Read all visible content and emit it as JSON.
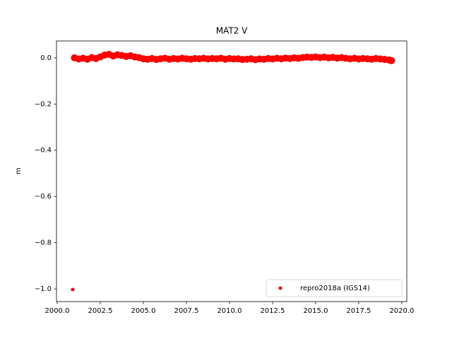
{
  "chart_data": {
    "type": "scatter",
    "title": "MAT2 V",
    "ylabel": "m",
    "x": [
      2000.9,
      2001.0,
      2001.25,
      2001.5,
      2001.75,
      2002.0,
      2002.25,
      2002.5,
      2002.75,
      2003.0,
      2003.25,
      2003.5,
      2003.75,
      2004.0,
      2004.25,
      2004.5,
      2004.75,
      2005.0,
      2005.25,
      2005.5,
      2005.75,
      2006.0,
      2006.25,
      2006.5,
      2006.75,
      2007.0,
      2007.25,
      2007.5,
      2007.75,
      2008.0,
      2008.25,
      2008.5,
      2008.75,
      2009.0,
      2009.25,
      2009.5,
      2009.75,
      2010.0,
      2010.25,
      2010.5,
      2010.75,
      2011.0,
      2011.25,
      2011.5,
      2011.75,
      2012.0,
      2012.25,
      2012.5,
      2012.75,
      2013.0,
      2013.25,
      2013.5,
      2013.75,
      2014.0,
      2014.25,
      2014.5,
      2014.75,
      2015.0,
      2015.25,
      2015.5,
      2015.75,
      2016.0,
      2016.25,
      2016.5,
      2016.75,
      2017.0,
      2017.25,
      2017.5,
      2017.75,
      2018.0,
      2018.25,
      2018.5,
      2018.75,
      2019.0,
      2019.25,
      2019.4
    ],
    "series": [
      {
        "name": "repro2018a (IGS14)",
        "color": "#ff0000",
        "values": [
          -1.003,
          0.0,
          -0.005,
          -0.002,
          -0.006,
          0.001,
          -0.003,
          0.004,
          0.012,
          0.015,
          0.008,
          0.013,
          0.01,
          0.006,
          0.009,
          0.004,
          0.001,
          -0.004,
          -0.006,
          -0.003,
          -0.007,
          -0.004,
          -0.002,
          -0.006,
          -0.003,
          -0.005,
          -0.002,
          -0.004,
          -0.006,
          -0.003,
          -0.004,
          -0.002,
          -0.005,
          -0.003,
          -0.004,
          -0.002,
          -0.006,
          -0.003,
          -0.005,
          -0.004,
          -0.007,
          -0.006,
          -0.004,
          -0.008,
          -0.005,
          -0.006,
          -0.003,
          -0.005,
          -0.002,
          -0.004,
          -0.001,
          -0.003,
          0.0,
          -0.002,
          0.001,
          0.003,
          0.002,
          0.004,
          0.001,
          0.003,
          0.0,
          0.002,
          -0.001,
          0.001,
          -0.002,
          -0.004,
          -0.002,
          -0.005,
          -0.003,
          -0.004,
          -0.006,
          -0.003,
          -0.005,
          -0.007,
          -0.009,
          -0.012
        ]
      }
    ],
    "xlim": [
      1999.96,
      2020.29
    ],
    "ylim": [
      -1.055,
      0.073
    ],
    "xticks": [
      {
        "value": 2000.0,
        "label": "2000.0"
      },
      {
        "value": 2002.5,
        "label": "2002.5"
      },
      {
        "value": 2005.0,
        "label": "2005.0"
      },
      {
        "value": 2007.5,
        "label": "2007.5"
      },
      {
        "value": 2010.0,
        "label": "2010.0"
      },
      {
        "value": 2012.5,
        "label": "2012.5"
      },
      {
        "value": 2015.0,
        "label": "2015.0"
      },
      {
        "value": 2017.5,
        "label": "2017.5"
      },
      {
        "value": 2020.0,
        "label": "2020.0"
      }
    ],
    "yticks": [
      {
        "value": 0.0,
        "label": "0.0"
      },
      {
        "value": -0.2,
        "label": "−0.2"
      },
      {
        "value": -0.4,
        "label": "−0.4"
      },
      {
        "value": -0.6,
        "label": "−0.6"
      },
      {
        "value": -0.8,
        "label": "−0.8"
      },
      {
        "value": -1.0,
        "label": "−1.0"
      }
    ],
    "legend": "lower right",
    "grid": false
  }
}
